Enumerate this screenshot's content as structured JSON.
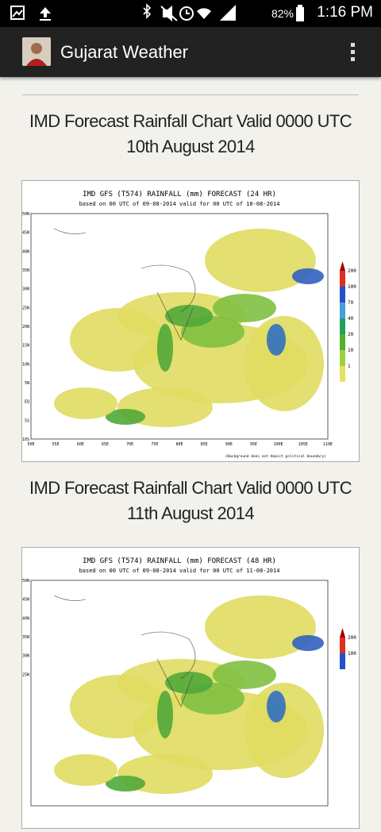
{
  "status_bar": {
    "battery": "82%",
    "time": "1:16 PM"
  },
  "app_bar": {
    "title": "Gujarat Weather"
  },
  "posts": [
    {
      "heading": "IMD Forecast Rainfall Chart Valid 0000 UTC 10th August 2014",
      "chart": {
        "title": "IMD GFS (T574) RAINFALL (mm) FORECAST (24 HR)",
        "subtitle": "based on 00 UTC of 09-08-2014 valid for 00 UTC of 10-08-2014",
        "lat_labels": [
          "50N",
          "45N",
          "40N",
          "35N",
          "30N",
          "25N",
          "20N",
          "15N",
          "10N",
          "5N",
          "EQ",
          "5S",
          "10S"
        ],
        "lon_labels": [
          "50E",
          "55E",
          "60E",
          "65E",
          "70E",
          "75E",
          "80E",
          "85E",
          "90E",
          "95E",
          "100E",
          "105E",
          "110E"
        ],
        "legend": [
          "200",
          "100",
          "70",
          "40",
          "20",
          "10",
          "1"
        ],
        "note": "(Background does not depict political boundary)"
      }
    },
    {
      "heading": "IMD Forecast Rainfall Chart Valid 0000 UTC 11th August 2014",
      "chart": {
        "title": "IMD GFS (T574) RAINFALL (mm) FORECAST (48 HR)",
        "subtitle": "based on 00 UTC of 09-08-2014 valid for 00 UTC of 11-08-2014",
        "lat_labels": [
          "50N",
          "45N",
          "40N",
          "35N",
          "30N",
          "25N"
        ],
        "lon_labels": [],
        "legend": [
          "200",
          "100"
        ],
        "note": null
      }
    }
  ]
}
